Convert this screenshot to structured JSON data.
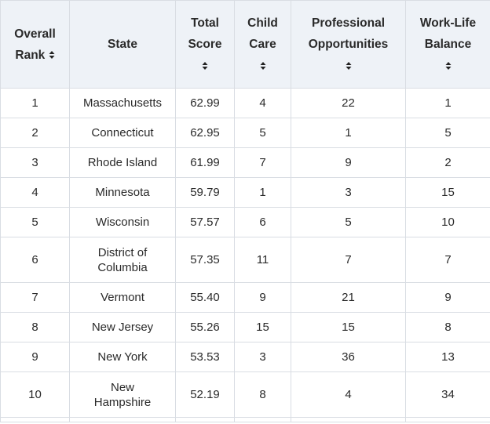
{
  "table": {
    "headers": [
      {
        "line1": "Overall",
        "line2": "Rank",
        "sort_inline": true
      },
      {
        "line1": "State",
        "line2": "",
        "sort_inline": false,
        "no_sort": true
      },
      {
        "line1": "Total",
        "line2": "Score",
        "sort_inline": false
      },
      {
        "line1": "Child",
        "line2": "Care",
        "sort_inline": false
      },
      {
        "line1": "Professional",
        "line2": "Opportunities",
        "sort_inline": false
      },
      {
        "line1": "Work-Life",
        "line2": "Balance",
        "sort_inline": false
      }
    ],
    "sort_icon": "sort-updown-icon",
    "rows": [
      [
        "1",
        "Massachusetts",
        "62.99",
        "4",
        "22",
        "1"
      ],
      [
        "2",
        "Connecticut",
        "62.95",
        "5",
        "1",
        "5"
      ],
      [
        "3",
        "Rhode Island",
        "61.99",
        "7",
        "9",
        "2"
      ],
      [
        "4",
        "Minnesota",
        "59.79",
        "1",
        "3",
        "15"
      ],
      [
        "5",
        "Wisconsin",
        "57.57",
        "6",
        "5",
        "10"
      ],
      [
        "6",
        "District of\nColumbia",
        "57.35",
        "11",
        "7",
        "7"
      ],
      [
        "7",
        "Vermont",
        "55.40",
        "9",
        "21",
        "9"
      ],
      [
        "8",
        "New Jersey",
        "55.26",
        "15",
        "15",
        "8"
      ],
      [
        "9",
        "New York",
        "53.53",
        "3",
        "36",
        "13"
      ],
      [
        "10",
        "New\nHampshire",
        "52.19",
        "8",
        "4",
        "34"
      ]
    ]
  }
}
